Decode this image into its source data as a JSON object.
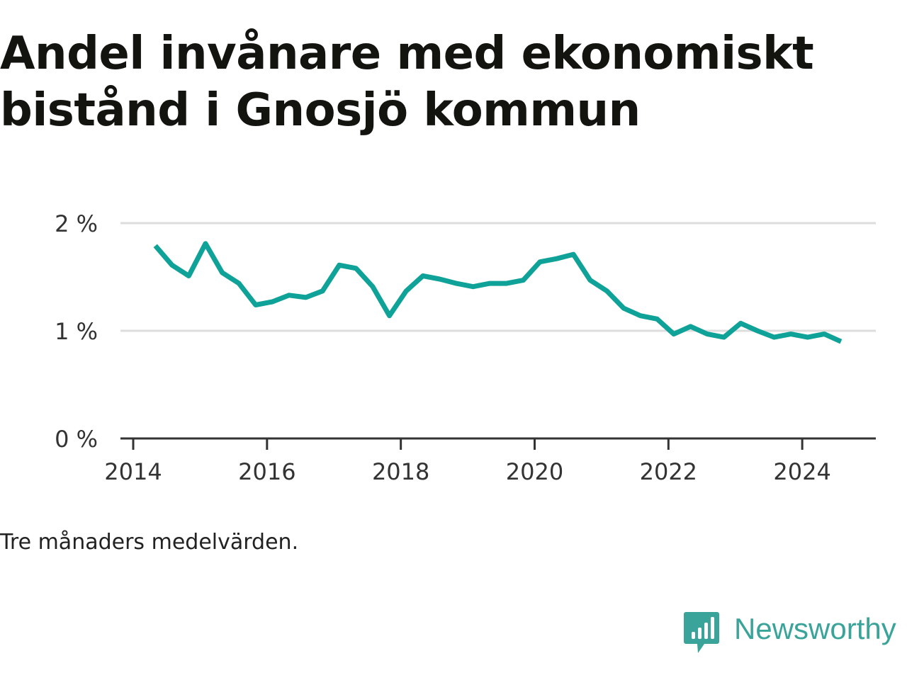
{
  "colors": {
    "line": "#0fa298",
    "grid": "#dddddd",
    "axis": "#333333",
    "text": "#13140f",
    "brand": "#3aa49a"
  },
  "caption": "Tre månaders medelvärden.",
  "brand": {
    "name": "Newsworthy",
    "icon": "bar-chart-speech-bubble-icon"
  },
  "chart_data": {
    "type": "line",
    "title": "Andel invånare med ekonomiskt bistånd i Gnosjö kommun",
    "xlabel": "",
    "ylabel": "",
    "xlim": [
      2014,
      2025.1
    ],
    "ylim": [
      0,
      2
    ],
    "y_ticks": [
      0,
      1,
      2
    ],
    "y_tick_labels": [
      "0 %",
      "1 %",
      "2 %"
    ],
    "x_ticks": [
      2014,
      2016,
      2018,
      2020,
      2022,
      2024
    ],
    "x_tick_labels": [
      "2014",
      "2016",
      "2018",
      "2020",
      "2022",
      "2024"
    ],
    "grid": true,
    "series": [
      {
        "name": "Andel invånare med ekonomiskt bistånd",
        "x": [
          2014.33,
          2014.58,
          2014.83,
          2015.08,
          2015.33,
          2015.58,
          2015.83,
          2016.08,
          2016.33,
          2016.58,
          2016.83,
          2017.08,
          2017.33,
          2017.58,
          2017.83,
          2018.08,
          2018.33,
          2018.58,
          2018.83,
          2019.08,
          2019.33,
          2019.58,
          2019.83,
          2020.08,
          2020.33,
          2020.58,
          2020.83,
          2021.08,
          2021.33,
          2021.58,
          2021.83,
          2022.08,
          2022.33,
          2022.58,
          2022.83,
          2023.08,
          2023.33,
          2023.58,
          2023.83,
          2024.08,
          2024.33,
          2024.58
        ],
        "values": [
          1.79,
          1.61,
          1.51,
          1.81,
          1.54,
          1.44,
          1.24,
          1.27,
          1.33,
          1.31,
          1.37,
          1.61,
          1.58,
          1.41,
          1.14,
          1.37,
          1.51,
          1.48,
          1.44,
          1.41,
          1.44,
          1.44,
          1.47,
          1.64,
          1.67,
          1.71,
          1.47,
          1.37,
          1.21,
          1.14,
          1.11,
          0.97,
          1.04,
          0.97,
          0.94,
          1.07,
          1.0,
          0.94,
          0.97,
          0.94,
          0.97,
          0.9
        ]
      }
    ]
  }
}
